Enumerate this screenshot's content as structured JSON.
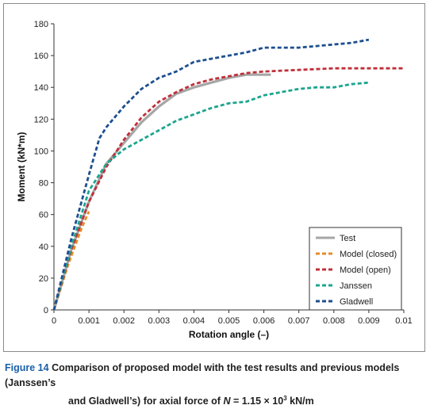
{
  "caption": {
    "figure_label": "Figure 14",
    "line1": "Comparison of proposed model with the test results and previous models (Janssen’s",
    "line2_prefix": "and Gladwell’s) for axial force of",
    "line2_var": "N",
    "line2_eq": " = 1.15 × 10",
    "line2_sup": "3",
    "line2_unit": " kN/m"
  },
  "chart_data": {
    "type": "line",
    "xlabel": "Rotation angle (–)",
    "ylabel": "Moment (kN*m)",
    "xlim": [
      0,
      0.01
    ],
    "ylim": [
      0,
      180
    ],
    "x_ticks": [
      "0",
      "0.001",
      "0.002",
      "0.003",
      "0.004",
      "0.005",
      "0.006",
      "0.007",
      "0.008",
      "0.009",
      "0.01"
    ],
    "y_ticks": [
      "0",
      "20",
      "40",
      "60",
      "80",
      "100",
      "120",
      "140",
      "160",
      "180"
    ],
    "grid": false,
    "legend_position": "bottom-right",
    "series": [
      {
        "name": "Test",
        "color": "#a6a6a6",
        "style": "solid",
        "x": [
          0,
          0.0005,
          0.001,
          0.0015,
          0.002,
          0.0025,
          0.003,
          0.0035,
          0.004,
          0.0045,
          0.005,
          0.0055,
          0.006,
          0.0062
        ],
        "y": [
          0,
          38,
          68,
          92,
          105,
          118,
          128,
          136,
          140,
          143,
          146,
          148,
          148,
          148
        ]
      },
      {
        "name": "Model (closed)",
        "color": "#e58c28",
        "style": "dashed",
        "x": [
          0,
          0.0004,
          0.0008,
          0.001
        ],
        "y": [
          0,
          28,
          52,
          62
        ]
      },
      {
        "name": "Model (open)",
        "color": "#c0303a",
        "style": "dashed",
        "x": [
          0,
          0.0005,
          0.001,
          0.0015,
          0.002,
          0.0025,
          0.003,
          0.0035,
          0.004,
          0.0045,
          0.005,
          0.0055,
          0.006,
          0.007,
          0.008,
          0.009,
          0.01
        ],
        "y": [
          0,
          38,
          68,
          90,
          107,
          121,
          131,
          137,
          142,
          145,
          147,
          149,
          150,
          151,
          152,
          152,
          152
        ]
      },
      {
        "name": "Janssen",
        "color": "#1ca58e",
        "style": "dashed",
        "x": [
          0,
          0.0005,
          0.001,
          0.0015,
          0.002,
          0.0025,
          0.003,
          0.0035,
          0.004,
          0.0045,
          0.005,
          0.0055,
          0.006,
          0.0065,
          0.007,
          0.0075,
          0.008,
          0.0085,
          0.009
        ],
        "y": [
          0,
          40,
          75,
          92,
          101,
          107,
          113,
          119,
          123,
          127,
          130,
          131,
          135,
          137,
          139,
          140,
          140,
          142,
          143
        ]
      },
      {
        "name": "Gladwell",
        "color": "#1d4f8f",
        "style": "dashed",
        "x": [
          0,
          0.0005,
          0.001,
          0.0013,
          0.0015,
          0.002,
          0.0025,
          0.003,
          0.0035,
          0.004,
          0.0045,
          0.005,
          0.0055,
          0.006,
          0.0065,
          0.007,
          0.0075,
          0.008,
          0.0085,
          0.009
        ],
        "y": [
          0,
          45,
          85,
          108,
          115,
          128,
          139,
          146,
          150,
          156,
          158,
          160,
          162,
          165,
          165,
          165,
          166,
          167,
          168,
          170
        ]
      }
    ]
  }
}
